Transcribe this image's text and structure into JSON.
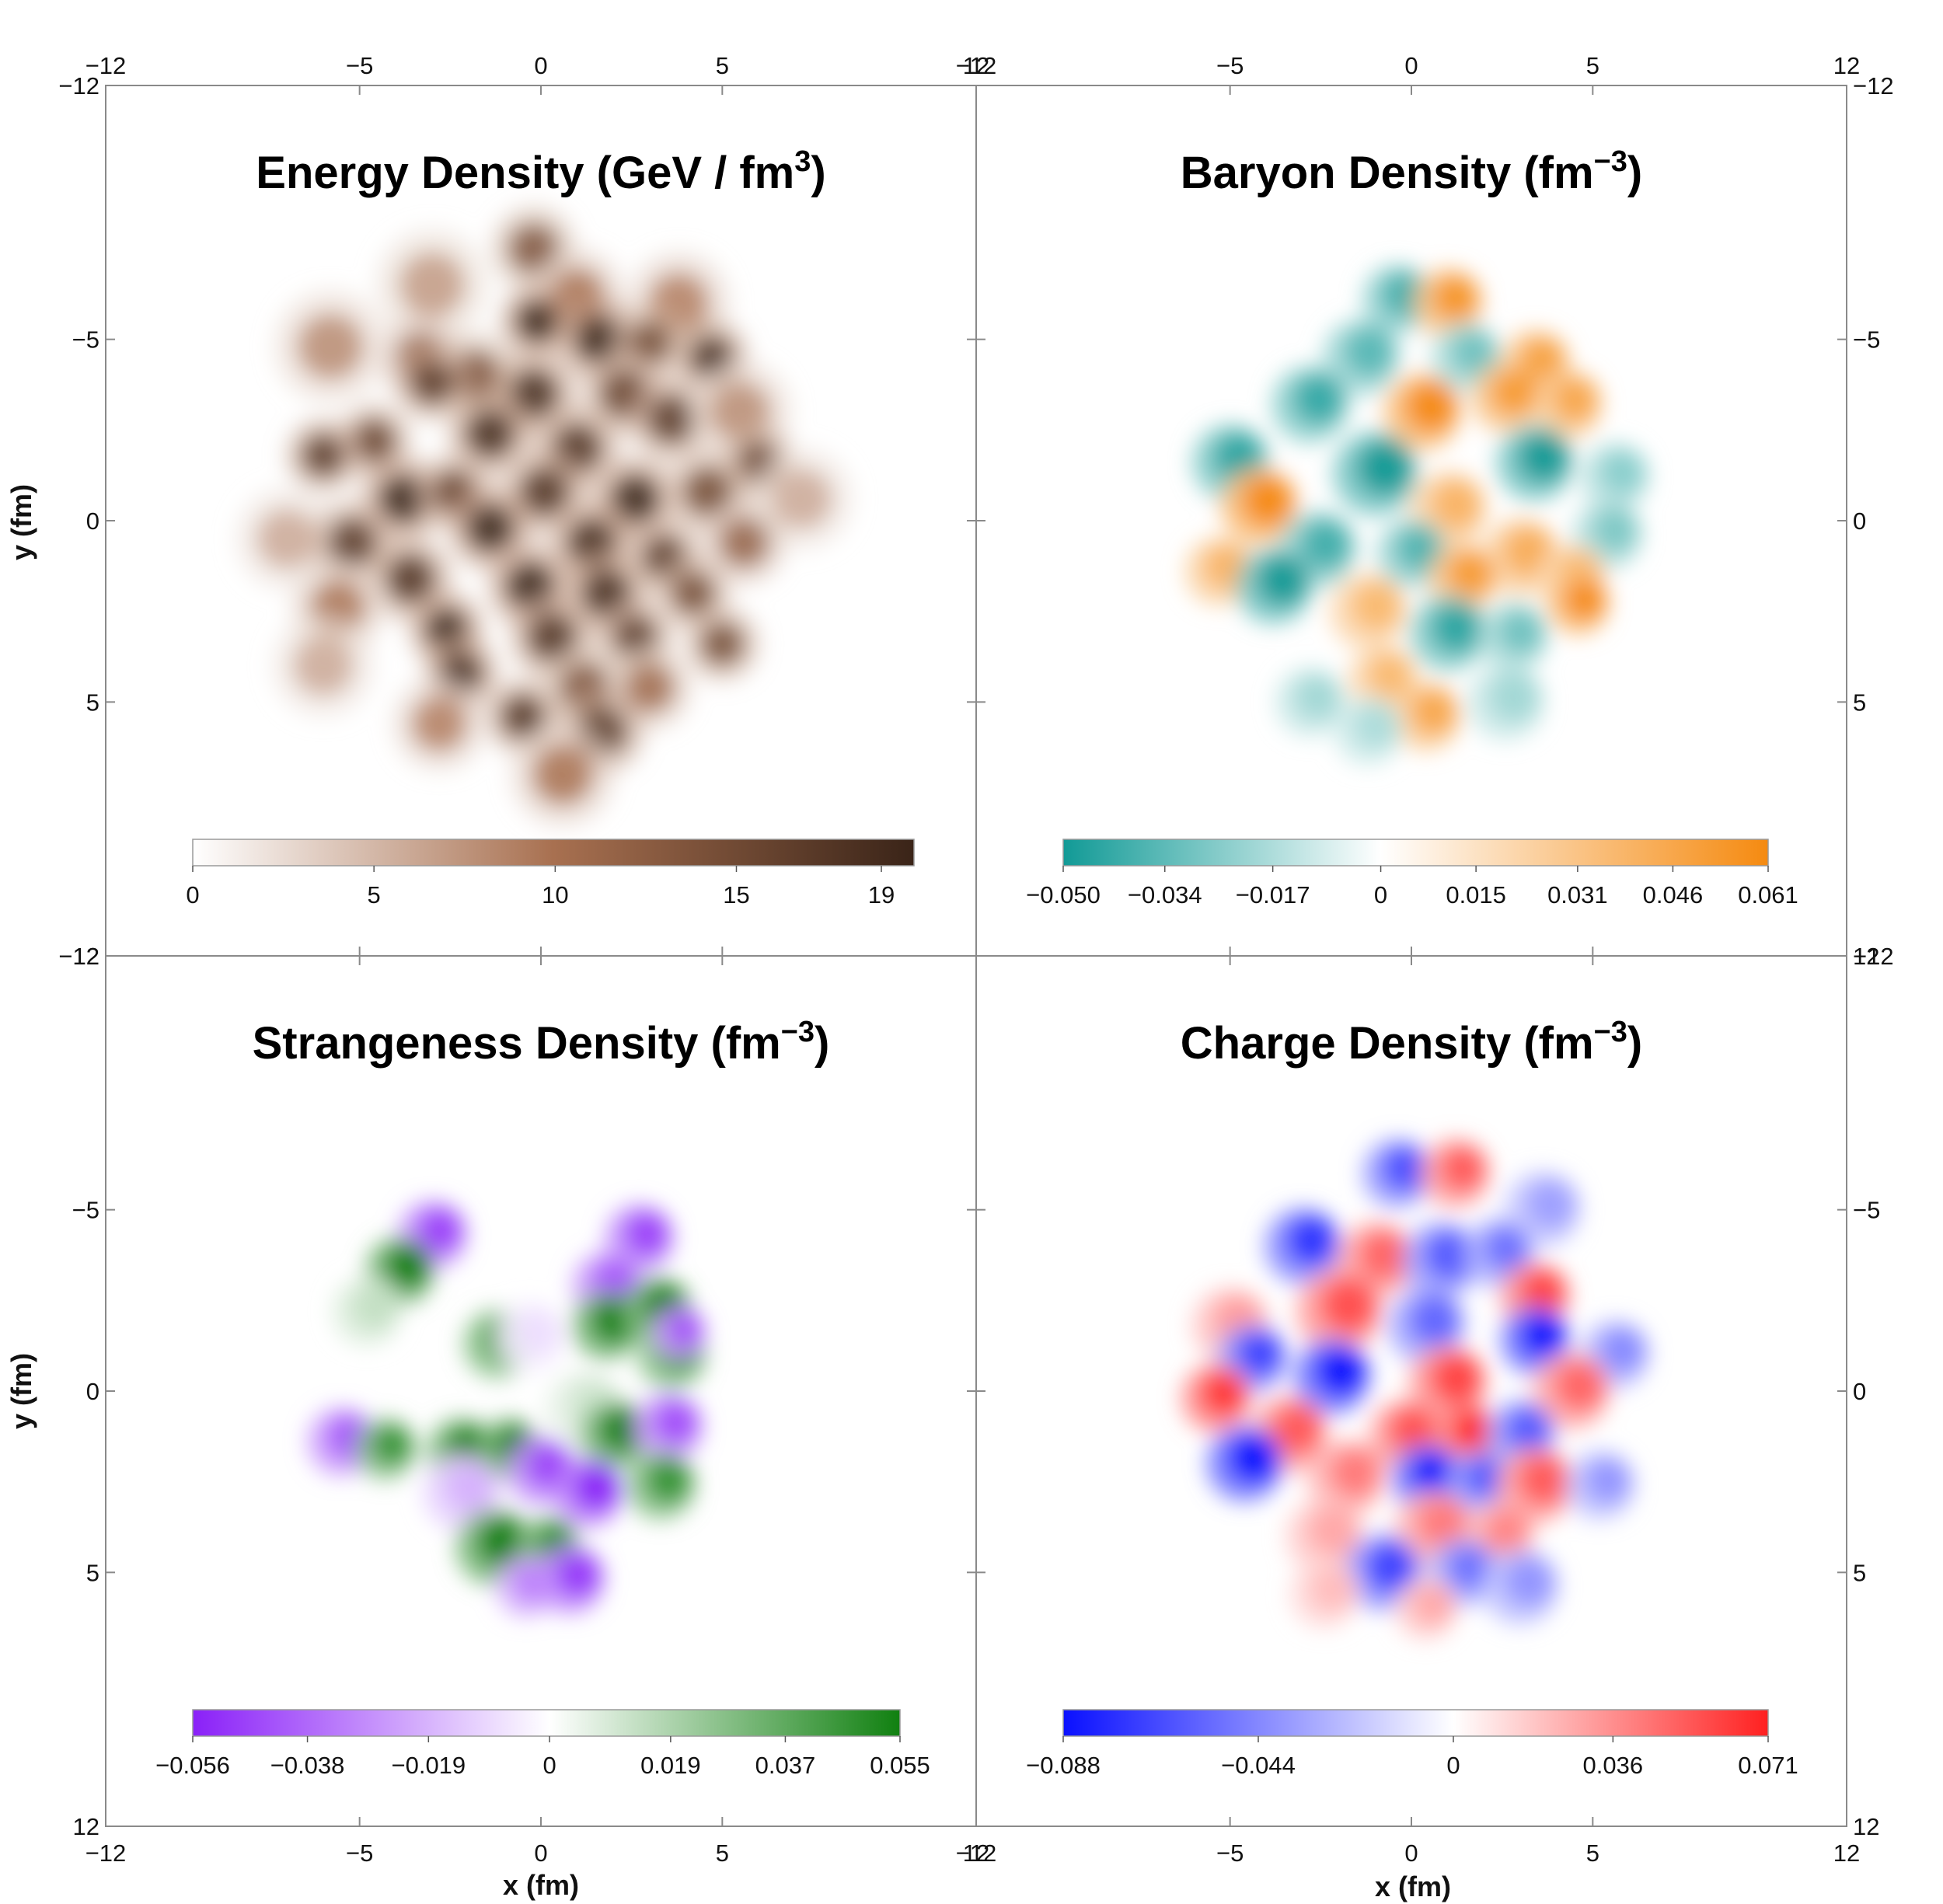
{
  "figure": {
    "x_axis_label": "x (fm)",
    "y_axis_label": "y (fm)",
    "x_ticks": [
      -12,
      -5,
      0,
      5,
      12
    ],
    "y_ticks": [
      -12,
      -5,
      0,
      5,
      12
    ]
  },
  "chart_data": [
    {
      "type": "heatmap",
      "title": "Energy Density (GeV / fm",
      "title_sup": "3",
      "title_tail": ")",
      "xlim": [
        -12,
        12
      ],
      "ylim": [
        -12,
        12
      ],
      "y_inverted": true,
      "colorbar": {
        "min": 0,
        "max": 19.9,
        "ticks": [
          0,
          5,
          10,
          15,
          19
        ],
        "tick_labels": [
          "0",
          "5",
          "10",
          "15",
          "19"
        ],
        "colors": [
          "#ffffff",
          "#a87050",
          "#3a2418"
        ]
      },
      "blobs": [
        {
          "x": -0.2,
          "y": -7.5,
          "v": 0.7,
          "r": 0.9
        },
        {
          "x": -3.0,
          "y": -6.5,
          "v": 0.35,
          "r": 1.2
        },
        {
          "x": 1.0,
          "y": -6.2,
          "v": 0.5,
          "r": 1.0
        },
        {
          "x": 3.8,
          "y": -6.0,
          "v": 0.45,
          "r": 1.1
        },
        {
          "x": -0.1,
          "y": -5.5,
          "v": 1.0,
          "r": 0.8
        },
        {
          "x": 1.6,
          "y": -5.0,
          "v": 1.0,
          "r": 0.9
        },
        {
          "x": 3.0,
          "y": -4.9,
          "v": 0.75,
          "r": 0.8
        },
        {
          "x": 4.7,
          "y": -4.5,
          "v": 0.95,
          "r": 0.8
        },
        {
          "x": -5.8,
          "y": -4.8,
          "v": 0.4,
          "r": 1.2
        },
        {
          "x": -3.3,
          "y": -4.5,
          "v": 0.6,
          "r": 0.9
        },
        {
          "x": -1.8,
          "y": -4.0,
          "v": 0.7,
          "r": 0.9
        },
        {
          "x": -3.0,
          "y": -3.8,
          "v": 0.85,
          "r": 0.8
        },
        {
          "x": -0.2,
          "y": -3.5,
          "v": 0.95,
          "r": 0.9
        },
        {
          "x": 2.3,
          "y": -3.5,
          "v": 0.8,
          "r": 0.9
        },
        {
          "x": 3.6,
          "y": -2.8,
          "v": 0.85,
          "r": 0.9
        },
        {
          "x": 5.5,
          "y": -3.0,
          "v": 0.4,
          "r": 1.1
        },
        {
          "x": -4.6,
          "y": -2.2,
          "v": 0.8,
          "r": 0.8
        },
        {
          "x": -1.4,
          "y": -2.4,
          "v": 0.95,
          "r": 0.9
        },
        {
          "x": 1.0,
          "y": -2.0,
          "v": 0.9,
          "r": 0.9
        },
        {
          "x": -6.0,
          "y": -1.8,
          "v": 0.85,
          "r": 0.8
        },
        {
          "x": 6.0,
          "y": -1.6,
          "v": 0.8,
          "r": 0.8
        },
        {
          "x": -3.8,
          "y": -0.6,
          "v": 1.0,
          "r": 0.9
        },
        {
          "x": -2.4,
          "y": -0.8,
          "v": 0.8,
          "r": 0.8
        },
        {
          "x": 0.1,
          "y": -0.8,
          "v": 0.9,
          "r": 0.9
        },
        {
          "x": 2.6,
          "y": -0.6,
          "v": 1.0,
          "r": 0.9
        },
        {
          "x": 4.6,
          "y": -0.8,
          "v": 0.75,
          "r": 0.9
        },
        {
          "x": 7.2,
          "y": -0.6,
          "v": 0.3,
          "r": 1.1
        },
        {
          "x": -7.0,
          "y": 0.5,
          "v": 0.3,
          "r": 1.1
        },
        {
          "x": -5.2,
          "y": 0.6,
          "v": 0.85,
          "r": 0.9
        },
        {
          "x": -1.4,
          "y": 0.2,
          "v": 1.0,
          "r": 0.9
        },
        {
          "x": 1.4,
          "y": 0.6,
          "v": 0.95,
          "r": 0.9
        },
        {
          "x": 3.4,
          "y": 1.0,
          "v": 0.85,
          "r": 0.8
        },
        {
          "x": 5.6,
          "y": 0.6,
          "v": 0.6,
          "r": 0.9
        },
        {
          "x": -3.6,
          "y": 1.6,
          "v": 0.9,
          "r": 0.9
        },
        {
          "x": -0.3,
          "y": 1.8,
          "v": 1.0,
          "r": 0.9
        },
        {
          "x": 1.8,
          "y": 2.0,
          "v": 0.95,
          "r": 0.9
        },
        {
          "x": 4.2,
          "y": 2.0,
          "v": 0.75,
          "r": 0.8
        },
        {
          "x": -5.6,
          "y": 2.4,
          "v": 0.5,
          "r": 1.0
        },
        {
          "x": -2.6,
          "y": 3.0,
          "v": 1.0,
          "r": 0.8
        },
        {
          "x": 0.3,
          "y": 3.2,
          "v": 0.9,
          "r": 0.9
        },
        {
          "x": 2.6,
          "y": 3.2,
          "v": 0.85,
          "r": 0.8
        },
        {
          "x": 5.0,
          "y": 3.4,
          "v": 0.75,
          "r": 0.8
        },
        {
          "x": -6.0,
          "y": 4.0,
          "v": 0.3,
          "r": 1.1
        },
        {
          "x": -2.2,
          "y": 4.2,
          "v": 0.95,
          "r": 0.8
        },
        {
          "x": 1.2,
          "y": 4.6,
          "v": 0.7,
          "r": 0.9
        },
        {
          "x": 3.0,
          "y": 4.6,
          "v": 0.55,
          "r": 0.9
        },
        {
          "x": -0.5,
          "y": 5.4,
          "v": 0.9,
          "r": 0.8
        },
        {
          "x": 1.7,
          "y": 5.8,
          "v": 0.85,
          "r": 0.9
        },
        {
          "x": -2.8,
          "y": 5.6,
          "v": 0.45,
          "r": 1.0
        },
        {
          "x": 0.6,
          "y": 7.0,
          "v": 0.5,
          "r": 1.1
        }
      ]
    },
    {
      "type": "heatmap",
      "title": "Baryon Density (fm",
      "title_sup": "−3",
      "title_tail": ")",
      "xlim": [
        -12,
        12
      ],
      "ylim": [
        -12,
        12
      ],
      "y_inverted": true,
      "colorbar": {
        "min": -0.05,
        "max": 0.061,
        "ticks": [
          -0.05,
          -0.034,
          -0.017,
          0,
          0.015,
          0.031,
          0.046,
          0.061
        ],
        "tick_labels": [
          "−0.050",
          "−0.034",
          "−0.017",
          "0",
          "0.015",
          "0.031",
          "0.046",
          "0.061"
        ],
        "colors": [
          "#119a96",
          "#ffffff",
          "#f58a10"
        ]
      },
      "blobs": [
        {
          "x": -0.4,
          "y": -6.1,
          "v": -0.8,
          "r": 0.9
        },
        {
          "x": 1.0,
          "y": -6.0,
          "v": 0.9,
          "r": 0.9
        },
        {
          "x": -1.4,
          "y": -4.5,
          "v": -0.7,
          "r": 1.0
        },
        {
          "x": 1.5,
          "y": -4.5,
          "v": -0.6,
          "r": 0.9
        },
        {
          "x": 3.4,
          "y": -4.3,
          "v": 0.8,
          "r": 0.9
        },
        {
          "x": 4.3,
          "y": -3.2,
          "v": 0.75,
          "r": 0.9
        },
        {
          "x": -2.8,
          "y": -3.2,
          "v": -0.85,
          "r": 1.0
        },
        {
          "x": 0.3,
          "y": -3.0,
          "v": 1.0,
          "r": 1.0
        },
        {
          "x": 2.6,
          "y": -3.4,
          "v": 0.85,
          "r": 0.9
        },
        {
          "x": -5.0,
          "y": -1.6,
          "v": -0.9,
          "r": 1.0
        },
        {
          "x": -1.0,
          "y": -1.3,
          "v": -1.0,
          "r": 1.1
        },
        {
          "x": 3.4,
          "y": -1.6,
          "v": -1.0,
          "r": 1.0
        },
        {
          "x": 5.6,
          "y": -1.2,
          "v": -0.5,
          "r": 0.9
        },
        {
          "x": -4.2,
          "y": -0.4,
          "v": 1.0,
          "r": 1.0
        },
        {
          "x": 1.0,
          "y": -0.3,
          "v": 0.65,
          "r": 1.0
        },
        {
          "x": 5.4,
          "y": 0.4,
          "v": -0.55,
          "r": 0.9
        },
        {
          "x": -2.6,
          "y": 0.8,
          "v": -0.8,
          "r": 1.0
        },
        {
          "x": 0.0,
          "y": 0.9,
          "v": -0.75,
          "r": 0.9
        },
        {
          "x": 3.0,
          "y": 1.0,
          "v": 0.7,
          "r": 1.0
        },
        {
          "x": -5.3,
          "y": 1.4,
          "v": 0.65,
          "r": 0.9
        },
        {
          "x": -3.8,
          "y": 1.8,
          "v": -1.0,
          "r": 1.0
        },
        {
          "x": 1.4,
          "y": 1.6,
          "v": 0.85,
          "r": 0.9
        },
        {
          "x": 4.4,
          "y": 1.6,
          "v": 0.6,
          "r": 0.9
        },
        {
          "x": -1.2,
          "y": 2.5,
          "v": 0.6,
          "r": 1.0
        },
        {
          "x": 4.6,
          "y": 2.3,
          "v": 1.0,
          "r": 0.8
        },
        {
          "x": 1.0,
          "y": 3.1,
          "v": -0.9,
          "r": 1.0
        },
        {
          "x": 2.8,
          "y": 3.2,
          "v": -0.6,
          "r": 0.9
        },
        {
          "x": -0.8,
          "y": 4.4,
          "v": 0.6,
          "r": 0.9
        },
        {
          "x": -2.8,
          "y": 5.0,
          "v": -0.4,
          "r": 0.9
        },
        {
          "x": 0.4,
          "y": 5.4,
          "v": 0.75,
          "r": 0.9
        },
        {
          "x": 2.6,
          "y": 5.0,
          "v": -0.4,
          "r": 1.0
        },
        {
          "x": -1.2,
          "y": 5.8,
          "v": -0.35,
          "r": 0.9
        }
      ]
    },
    {
      "type": "heatmap",
      "title": "Strangeness Density (fm",
      "title_sup": "−3",
      "title_tail": ")",
      "xlim": [
        -12,
        12
      ],
      "ylim": [
        -12,
        12
      ],
      "y_inverted": true,
      "colorbar": {
        "min": -0.056,
        "max": 0.055,
        "ticks": [
          -0.056,
          -0.038,
          -0.019,
          0,
          0.019,
          0.037,
          0.055
        ],
        "tick_labels": [
          "−0.056",
          "−0.038",
          "−0.019",
          "0",
          "0.019",
          "0.037",
          "0.055"
        ],
        "colors": [
          "#8a20f8",
          "#ffffff",
          "#108010"
        ]
      },
      "blobs": [
        {
          "x": -3.0,
          "y": -4.3,
          "v": -0.85,
          "r": 0.9
        },
        {
          "x": -3.9,
          "y": -3.3,
          "v": 1.0,
          "r": 0.9
        },
        {
          "x": -4.8,
          "y": -2.2,
          "v": 0.25,
          "r": 0.9
        },
        {
          "x": -1.2,
          "y": -1.3,
          "v": 0.85,
          "r": 0.9
        },
        {
          "x": -0.3,
          "y": -1.5,
          "v": -0.15,
          "r": 0.9
        },
        {
          "x": 2.7,
          "y": -4.2,
          "v": -0.85,
          "r": 0.9
        },
        {
          "x": 1.8,
          "y": -2.9,
          "v": -0.75,
          "r": 0.9
        },
        {
          "x": 1.8,
          "y": -1.8,
          "v": 1.0,
          "r": 0.9
        },
        {
          "x": 3.2,
          "y": -2.2,
          "v": 1.0,
          "r": 0.9
        },
        {
          "x": 3.6,
          "y": -1.0,
          "v": 0.85,
          "r": 0.9
        },
        {
          "x": 3.8,
          "y": -1.6,
          "v": -0.8,
          "r": 0.7
        },
        {
          "x": 1.2,
          "y": 0.5,
          "v": 0.2,
          "r": 1.0
        },
        {
          "x": 2.0,
          "y": 1.2,
          "v": 1.0,
          "r": 0.9
        },
        {
          "x": 3.5,
          "y": 1.0,
          "v": -0.8,
          "r": 0.9
        },
        {
          "x": -5.5,
          "y": 1.4,
          "v": -0.75,
          "r": 0.9
        },
        {
          "x": -4.3,
          "y": 1.6,
          "v": 0.85,
          "r": 0.8
        },
        {
          "x": -2.2,
          "y": 1.7,
          "v": 1.0,
          "r": 0.9
        },
        {
          "x": -0.9,
          "y": 1.6,
          "v": 1.0,
          "r": 0.8
        },
        {
          "x": -2.2,
          "y": 2.8,
          "v": -0.35,
          "r": 1.0
        },
        {
          "x": 0.0,
          "y": 2.2,
          "v": -0.85,
          "r": 0.9
        },
        {
          "x": 1.3,
          "y": 2.8,
          "v": -1.0,
          "r": 0.9
        },
        {
          "x": 3.3,
          "y": 2.6,
          "v": 0.85,
          "r": 0.9
        },
        {
          "x": -1.3,
          "y": 4.3,
          "v": 1.0,
          "r": 1.0
        },
        {
          "x": 0.2,
          "y": 4.3,
          "v": 0.9,
          "r": 0.8
        },
        {
          "x": -0.4,
          "y": 5.4,
          "v": -0.6,
          "r": 0.8
        },
        {
          "x": 0.8,
          "y": 5.2,
          "v": -0.9,
          "r": 0.9
        }
      ]
    },
    {
      "type": "heatmap",
      "title": "Charge Density (fm",
      "title_sup": "−3",
      "title_tail": ")",
      "xlim": [
        -12,
        12
      ],
      "ylim": [
        -12,
        12
      ],
      "y_inverted": true,
      "colorbar": {
        "min": -0.088,
        "max": 0.071,
        "ticks": [
          -0.088,
          -0.044,
          0,
          0.036,
          0.071
        ],
        "tick_labels": [
          "−0.088",
          "−0.044",
          "0",
          "0.036",
          "0.071"
        ],
        "colors": [
          "#0a10ff",
          "#ffffff",
          "#ff2020"
        ]
      },
      "blobs": [
        {
          "x": -0.4,
          "y": -6.0,
          "v": -0.75,
          "r": 0.9
        },
        {
          "x": 1.2,
          "y": -6.0,
          "v": 0.75,
          "r": 0.9
        },
        {
          "x": 3.6,
          "y": -5.0,
          "v": -0.4,
          "r": 1.0
        },
        {
          "x": -3.0,
          "y": -4.0,
          "v": -0.85,
          "r": 1.0
        },
        {
          "x": -1.0,
          "y": -3.6,
          "v": 0.7,
          "r": 1.0
        },
        {
          "x": 0.8,
          "y": -3.6,
          "v": -0.7,
          "r": 1.0
        },
        {
          "x": 2.4,
          "y": -3.8,
          "v": -0.6,
          "r": 0.9
        },
        {
          "x": 3.4,
          "y": -2.6,
          "v": 0.85,
          "r": 0.9
        },
        {
          "x": -5.0,
          "y": -1.8,
          "v": 0.45,
          "r": 1.0
        },
        {
          "x": -2.0,
          "y": -2.2,
          "v": 0.8,
          "r": 1.1
        },
        {
          "x": 0.4,
          "y": -1.8,
          "v": -0.65,
          "r": 1.0
        },
        {
          "x": 3.4,
          "y": -1.4,
          "v": -1.0,
          "r": 0.9
        },
        {
          "x": 5.6,
          "y": -1.0,
          "v": -0.5,
          "r": 0.9
        },
        {
          "x": -4.4,
          "y": -0.9,
          "v": -0.8,
          "r": 0.9
        },
        {
          "x": -2.2,
          "y": -0.4,
          "v": -1.0,
          "r": 1.0
        },
        {
          "x": 1.0,
          "y": -0.2,
          "v": 0.85,
          "r": 1.0
        },
        {
          "x": 4.4,
          "y": 0.0,
          "v": 0.7,
          "r": 1.0
        },
        {
          "x": -5.4,
          "y": 0.2,
          "v": 0.9,
          "r": 0.9
        },
        {
          "x": -3.4,
          "y": 1.2,
          "v": 0.75,
          "r": 1.0
        },
        {
          "x": -0.2,
          "y": 1.2,
          "v": 0.8,
          "r": 0.9
        },
        {
          "x": 1.5,
          "y": 1.2,
          "v": 1.0,
          "r": 0.8
        },
        {
          "x": 3.0,
          "y": 1.2,
          "v": -0.7,
          "r": 0.9
        },
        {
          "x": -4.6,
          "y": 2.0,
          "v": -1.0,
          "r": 1.0
        },
        {
          "x": -1.8,
          "y": 2.4,
          "v": 0.6,
          "r": 1.0
        },
        {
          "x": 0.4,
          "y": 2.4,
          "v": -1.0,
          "r": 0.9
        },
        {
          "x": 1.8,
          "y": 2.5,
          "v": -0.7,
          "r": 0.8
        },
        {
          "x": 3.4,
          "y": 2.6,
          "v": 0.75,
          "r": 1.0
        },
        {
          "x": 5.2,
          "y": 2.6,
          "v": -0.45,
          "r": 0.9
        },
        {
          "x": -2.4,
          "y": 4.0,
          "v": 0.4,
          "r": 1.0
        },
        {
          "x": 0.6,
          "y": 3.8,
          "v": 0.6,
          "r": 1.0
        },
        {
          "x": 2.4,
          "y": 4.0,
          "v": 0.55,
          "r": 0.9
        },
        {
          "x": -0.8,
          "y": 5.0,
          "v": -0.8,
          "r": 1.0
        },
        {
          "x": 1.4,
          "y": 5.0,
          "v": -0.6,
          "r": 0.9
        },
        {
          "x": 3.0,
          "y": 5.4,
          "v": -0.45,
          "r": 1.0
        },
        {
          "x": -2.4,
          "y": 5.6,
          "v": 0.3,
          "r": 0.9
        },
        {
          "x": 0.4,
          "y": 6.0,
          "v": 0.4,
          "r": 0.8
        }
      ]
    }
  ]
}
